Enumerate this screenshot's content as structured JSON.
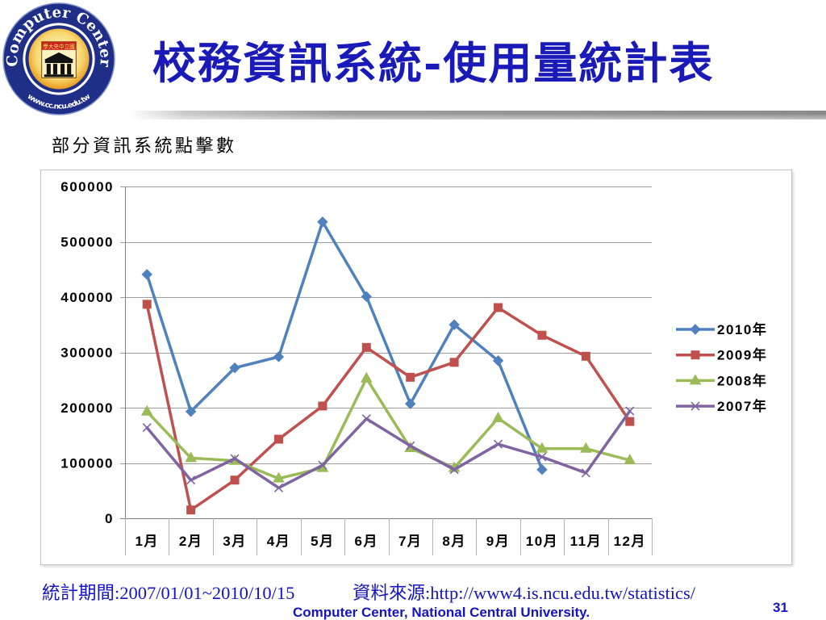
{
  "logo": {
    "top_text": "Computer Center",
    "bottom_text": "www.cc.ncu.edu.tw",
    "emblem_text": "國立中央大學"
  },
  "title": "校務資訊系統-使用量統計表",
  "subtitle": "部分資訊系統點擊數",
  "colors": {
    "title": "#1a1ab8",
    "footer": "#1414c0",
    "logo_ring": "#1f2e86",
    "background": "#ffffff"
  },
  "chart_data": {
    "type": "line",
    "categories": [
      "1月",
      "2月",
      "3月",
      "4月",
      "5月",
      "6月",
      "7月",
      "8月",
      "9月",
      "10月",
      "11月",
      "12月"
    ],
    "ylim": [
      0,
      600000
    ],
    "yticks": [
      0,
      100000,
      200000,
      300000,
      400000,
      500000,
      600000
    ],
    "grid": true,
    "legend_position": "right",
    "series": [
      {
        "name": "2010年",
        "color": "#4F81BD",
        "marker": "diamond",
        "values": [
          441000,
          193000,
          272000,
          292000,
          536000,
          401000,
          207000,
          350000,
          285000,
          88000,
          null,
          null
        ]
      },
      {
        "name": "2009年",
        "color": "#C0504D",
        "marker": "square",
        "values": [
          387000,
          15000,
          69000,
          143000,
          203000,
          309000,
          255000,
          282000,
          381000,
          331000,
          293000,
          175000
        ]
      },
      {
        "name": "2008年",
        "color": "#9BBB59",
        "marker": "triangle",
        "values": [
          193000,
          109000,
          104000,
          72000,
          91000,
          253000,
          127000,
          91000,
          181000,
          126000,
          126000,
          105000
        ]
      },
      {
        "name": "2007年",
        "color": "#8064A2",
        "marker": "x",
        "values": [
          164000,
          69000,
          108000,
          55000,
          96000,
          180000,
          131000,
          88000,
          134000,
          111000,
          82000,
          194000
        ]
      }
    ]
  },
  "footer": {
    "period": "統計期間:2007/01/01~2010/10/15",
    "source": "資料來源:http://www4.is.ncu.edu.tw/statistics/",
    "organization": "Computer Center, National Central University.",
    "page_number": "31"
  }
}
